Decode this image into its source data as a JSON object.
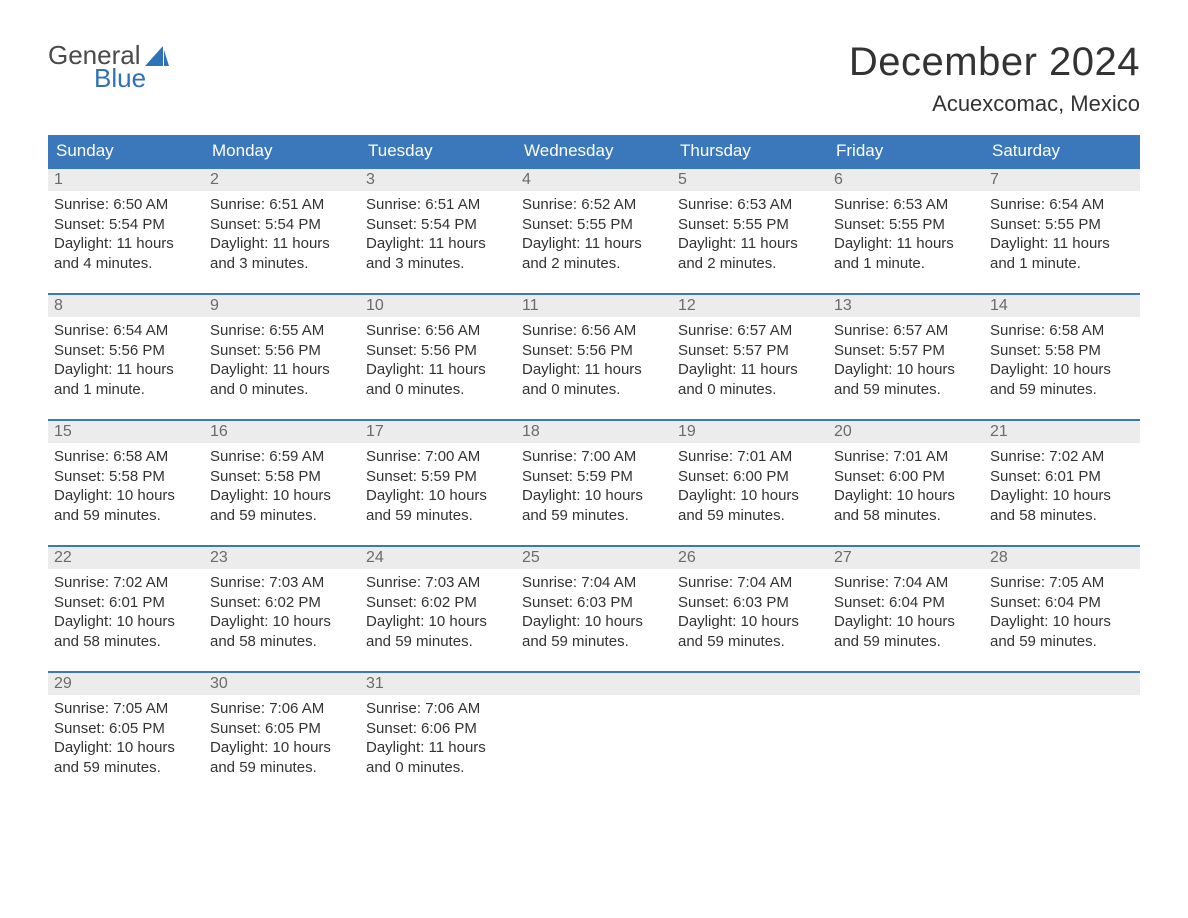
{
  "logo": {
    "text_general": "General",
    "text_blue": "Blue",
    "sail_color": "#2f72b8",
    "general_color": "#4a4a4a",
    "blue_color": "#2f72b8"
  },
  "header": {
    "month_title": "December 2024",
    "location": "Acuexcomac, Mexico",
    "title_fontsize": 40,
    "location_fontsize": 22,
    "title_color": "#333333"
  },
  "calendar": {
    "weekday_bg": "#3a78bb",
    "weekday_text_color": "#ffffff",
    "weekday_fontsize": 17,
    "row_top_border_color": "#3a78bb",
    "daynum_bg": "#ececec",
    "daynum_color": "#6b6b6b",
    "body_text_color": "#333333",
    "body_fontsize": 15,
    "background_color": "#ffffff",
    "weekdays": [
      "Sunday",
      "Monday",
      "Tuesday",
      "Wednesday",
      "Thursday",
      "Friday",
      "Saturday"
    ],
    "weeks": [
      [
        {
          "n": "1",
          "sunrise": "6:50 AM",
          "sunset": "5:54 PM",
          "day_h": "11",
          "day_m": "4 minutes"
        },
        {
          "n": "2",
          "sunrise": "6:51 AM",
          "sunset": "5:54 PM",
          "day_h": "11",
          "day_m": "3 minutes"
        },
        {
          "n": "3",
          "sunrise": "6:51 AM",
          "sunset": "5:54 PM",
          "day_h": "11",
          "day_m": "3 minutes"
        },
        {
          "n": "4",
          "sunrise": "6:52 AM",
          "sunset": "5:55 PM",
          "day_h": "11",
          "day_m": "2 minutes"
        },
        {
          "n": "5",
          "sunrise": "6:53 AM",
          "sunset": "5:55 PM",
          "day_h": "11",
          "day_m": "2 minutes"
        },
        {
          "n": "6",
          "sunrise": "6:53 AM",
          "sunset": "5:55 PM",
          "day_h": "11",
          "day_m": "1 minute"
        },
        {
          "n": "7",
          "sunrise": "6:54 AM",
          "sunset": "5:55 PM",
          "day_h": "11",
          "day_m": "1 minute"
        }
      ],
      [
        {
          "n": "8",
          "sunrise": "6:54 AM",
          "sunset": "5:56 PM",
          "day_h": "11",
          "day_m": "1 minute"
        },
        {
          "n": "9",
          "sunrise": "6:55 AM",
          "sunset": "5:56 PM",
          "day_h": "11",
          "day_m": "0 minutes"
        },
        {
          "n": "10",
          "sunrise": "6:56 AM",
          "sunset": "5:56 PM",
          "day_h": "11",
          "day_m": "0 minutes"
        },
        {
          "n": "11",
          "sunrise": "6:56 AM",
          "sunset": "5:56 PM",
          "day_h": "11",
          "day_m": "0 minutes"
        },
        {
          "n": "12",
          "sunrise": "6:57 AM",
          "sunset": "5:57 PM",
          "day_h": "11",
          "day_m": "0 minutes"
        },
        {
          "n": "13",
          "sunrise": "6:57 AM",
          "sunset": "5:57 PM",
          "day_h": "10",
          "day_m": "59 minutes"
        },
        {
          "n": "14",
          "sunrise": "6:58 AM",
          "sunset": "5:58 PM",
          "day_h": "10",
          "day_m": "59 minutes"
        }
      ],
      [
        {
          "n": "15",
          "sunrise": "6:58 AM",
          "sunset": "5:58 PM",
          "day_h": "10",
          "day_m": "59 minutes"
        },
        {
          "n": "16",
          "sunrise": "6:59 AM",
          "sunset": "5:58 PM",
          "day_h": "10",
          "day_m": "59 minutes"
        },
        {
          "n": "17",
          "sunrise": "7:00 AM",
          "sunset": "5:59 PM",
          "day_h": "10",
          "day_m": "59 minutes"
        },
        {
          "n": "18",
          "sunrise": "7:00 AM",
          "sunset": "5:59 PM",
          "day_h": "10",
          "day_m": "59 minutes"
        },
        {
          "n": "19",
          "sunrise": "7:01 AM",
          "sunset": "6:00 PM",
          "day_h": "10",
          "day_m": "59 minutes"
        },
        {
          "n": "20",
          "sunrise": "7:01 AM",
          "sunset": "6:00 PM",
          "day_h": "10",
          "day_m": "58 minutes"
        },
        {
          "n": "21",
          "sunrise": "7:02 AM",
          "sunset": "6:01 PM",
          "day_h": "10",
          "day_m": "58 minutes"
        }
      ],
      [
        {
          "n": "22",
          "sunrise": "7:02 AM",
          "sunset": "6:01 PM",
          "day_h": "10",
          "day_m": "58 minutes"
        },
        {
          "n": "23",
          "sunrise": "7:03 AM",
          "sunset": "6:02 PM",
          "day_h": "10",
          "day_m": "58 minutes"
        },
        {
          "n": "24",
          "sunrise": "7:03 AM",
          "sunset": "6:02 PM",
          "day_h": "10",
          "day_m": "59 minutes"
        },
        {
          "n": "25",
          "sunrise": "7:04 AM",
          "sunset": "6:03 PM",
          "day_h": "10",
          "day_m": "59 minutes"
        },
        {
          "n": "26",
          "sunrise": "7:04 AM",
          "sunset": "6:03 PM",
          "day_h": "10",
          "day_m": "59 minutes"
        },
        {
          "n": "27",
          "sunrise": "7:04 AM",
          "sunset": "6:04 PM",
          "day_h": "10",
          "day_m": "59 minutes"
        },
        {
          "n": "28",
          "sunrise": "7:05 AM",
          "sunset": "6:04 PM",
          "day_h": "10",
          "day_m": "59 minutes"
        }
      ],
      [
        {
          "n": "29",
          "sunrise": "7:05 AM",
          "sunset": "6:05 PM",
          "day_h": "10",
          "day_m": "59 minutes"
        },
        {
          "n": "30",
          "sunrise": "7:06 AM",
          "sunset": "6:05 PM",
          "day_h": "10",
          "day_m": "59 minutes"
        },
        {
          "n": "31",
          "sunrise": "7:06 AM",
          "sunset": "6:06 PM",
          "day_h": "11",
          "day_m": "0 minutes"
        },
        {
          "empty": true
        },
        {
          "empty": true
        },
        {
          "empty": true
        },
        {
          "empty": true
        }
      ]
    ],
    "labels": {
      "sunrise": "Sunrise:",
      "sunset": "Sunset:",
      "daylight": "Daylight:",
      "hours_word": "hours",
      "and_word": "and"
    }
  }
}
